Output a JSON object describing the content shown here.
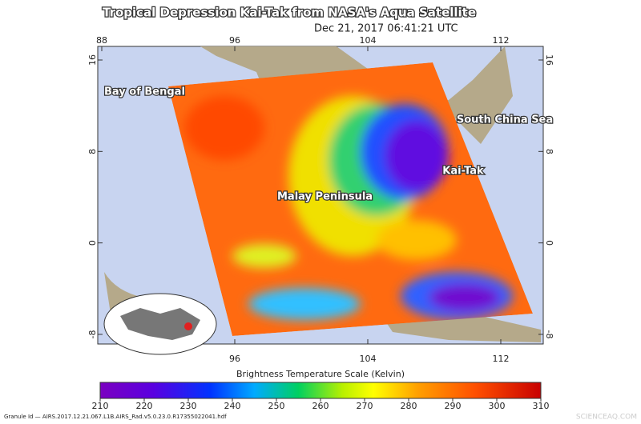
{
  "header": {
    "title": "Tropical Depression Kai-Tak from NASA's Aqua Satellite",
    "timestamp": "Dec 21, 2017 06:41:21 UTC"
  },
  "map": {
    "longitudes_top": [
      88,
      96,
      104,
      112
    ],
    "longitudes_bottom": [
      96,
      104,
      112
    ],
    "latitudes": [
      16,
      8,
      0,
      -8
    ],
    "labels": [
      "Bay of Bengal",
      "South China Sea",
      "Kai-Tak",
      "Malay Peninsula"
    ]
  },
  "colorbar": {
    "title": "Brightness Temperature Scale (Kelvin)",
    "range": [
      210,
      310
    ],
    "ticks": [
      210,
      220,
      230,
      240,
      250,
      260,
      270,
      280,
      290,
      300,
      310
    ]
  },
  "footer": {
    "granule": "Granule Id — AIRS.2017.12.21.067.L1B.AIRS_Rad.v5.0.23.0.R17355022041.hdf",
    "watermark": "SCIENCEAQ.COM"
  }
}
